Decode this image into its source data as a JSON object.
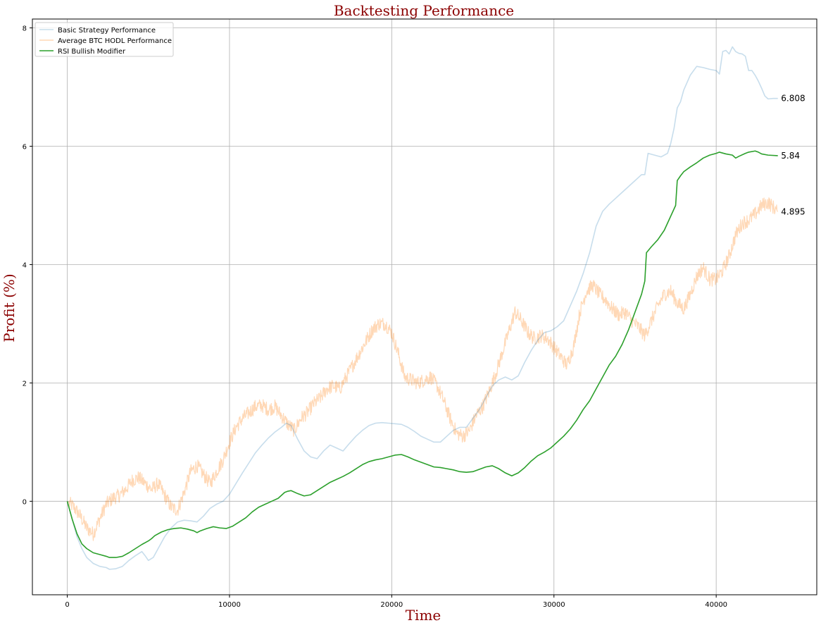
{
  "chart_data": {
    "type": "line",
    "title": "Backtesting Performance",
    "xlabel": "Time",
    "ylabel": "Profit (%)",
    "xlim": [
      -2150,
      46200
    ],
    "ylim": [
      -1.58,
      8.15
    ],
    "x_ticks": [
      0,
      10000,
      20000,
      30000,
      40000
    ],
    "y_ticks": [
      0,
      2,
      4,
      6,
      8
    ],
    "grid": true,
    "legend_position": "top-left",
    "series": [
      {
        "name": "Basic Strategy Performance",
        "color": "#1f77b4",
        "opacity": 0.25,
        "noise": 0,
        "end_label": "6.808",
        "x": [
          0,
          300,
          600,
          900,
          1200,
          1600,
          2000,
          2400,
          2600,
          3000,
          3400,
          3800,
          4200,
          4600,
          4800,
          5000,
          5300,
          5600,
          6000,
          6400,
          6800,
          7200,
          7600,
          8000,
          8400,
          8800,
          9200,
          9600,
          10000,
          10400,
          10800,
          11200,
          11600,
          12000,
          12400,
          12800,
          13200,
          13500,
          13800,
          14200,
          14600,
          15000,
          15400,
          15800,
          16200,
          16600,
          17000,
          17400,
          17800,
          18200,
          18600,
          19000,
          19400,
          19800,
          20200,
          20600,
          21000,
          21400,
          21800,
          22200,
          22600,
          23000,
          23400,
          23800,
          24200,
          24600,
          25000,
          25400,
          25800,
          26200,
          26600,
          27000,
          27400,
          27800,
          28200,
          28600,
          29000,
          29400,
          29800,
          30200,
          30600,
          31000,
          31400,
          31800,
          32200,
          32600,
          33000,
          33400,
          33800,
          34200,
          34600,
          35000,
          35400,
          35600,
          35800,
          36200,
          36600,
          37000,
          37200,
          37400,
          37600,
          37800,
          38000,
          38400,
          38800,
          39200,
          39600,
          40000,
          40200,
          40400,
          40600,
          40800,
          41000,
          41200,
          41400,
          41600,
          41800,
          42000,
          42200,
          42400,
          42600,
          42800,
          43000,
          43200,
          43500,
          43800
        ],
        "values": [
          0.0,
          -0.3,
          -0.6,
          -0.8,
          -0.95,
          -1.05,
          -1.1,
          -1.12,
          -1.15,
          -1.14,
          -1.1,
          -1.0,
          -0.92,
          -0.85,
          -0.92,
          -1.0,
          -0.95,
          -0.8,
          -0.6,
          -0.45,
          -0.35,
          -0.32,
          -0.33,
          -0.35,
          -0.25,
          -0.12,
          -0.05,
          0.0,
          0.12,
          0.3,
          0.48,
          0.65,
          0.82,
          0.95,
          1.07,
          1.17,
          1.25,
          1.32,
          1.28,
          1.05,
          0.85,
          0.75,
          0.72,
          0.85,
          0.95,
          0.9,
          0.85,
          0.98,
          1.1,
          1.2,
          1.28,
          1.32,
          1.33,
          1.32,
          1.31,
          1.3,
          1.25,
          1.18,
          1.1,
          1.05,
          1.0,
          1.0,
          1.1,
          1.2,
          1.25,
          1.25,
          1.4,
          1.55,
          1.75,
          1.95,
          2.05,
          2.1,
          2.05,
          2.12,
          2.35,
          2.55,
          2.72,
          2.85,
          2.88,
          2.95,
          3.05,
          3.3,
          3.55,
          3.85,
          4.2,
          4.65,
          4.9,
          5.02,
          5.12,
          5.22,
          5.32,
          5.42,
          5.52,
          5.52,
          5.88,
          5.85,
          5.82,
          5.88,
          6.05,
          6.3,
          6.65,
          6.75,
          6.95,
          7.2,
          7.35,
          7.33,
          7.3,
          7.28,
          7.22,
          7.6,
          7.62,
          7.56,
          7.68,
          7.6,
          7.57,
          7.56,
          7.52,
          7.28,
          7.28,
          7.2,
          7.1,
          6.98,
          6.85,
          6.8,
          6.808,
          6.808
        ]
      },
      {
        "name": "Average BTC HODL Performance",
        "color": "#ff7f0e",
        "opacity": 0.3,
        "noise": 0.12,
        "end_label": "4.895",
        "x": [
          0,
          400,
          800,
          1200,
          1600,
          2000,
          2400,
          2800,
          3200,
          3600,
          4000,
          4400,
          4800,
          5200,
          5600,
          6000,
          6400,
          6800,
          7200,
          7600,
          8000,
          8400,
          8800,
          9200,
          9600,
          10000,
          10400,
          10800,
          11200,
          11600,
          12000,
          12400,
          12800,
          13200,
          13600,
          14000,
          14400,
          14800,
          15200,
          15600,
          16000,
          16400,
          16800,
          17200,
          17600,
          18000,
          18400,
          18800,
          19200,
          19600,
          20000,
          20400,
          20800,
          21200,
          21600,
          22000,
          22400,
          22800,
          23200,
          23600,
          24000,
          24400,
          24800,
          25200,
          25600,
          26000,
          26400,
          26800,
          27200,
          27600,
          28000,
          28400,
          28800,
          29200,
          29600,
          30000,
          30400,
          30800,
          31200,
          31600,
          32000,
          32400,
          32800,
          33200,
          33600,
          34000,
          34400,
          34800,
          35200,
          35600,
          36000,
          36400,
          36800,
          37200,
          37600,
          38000,
          38400,
          38800,
          39200,
          39600,
          40000,
          40400,
          40800,
          41200,
          41600,
          42000,
          42400,
          42800,
          43200,
          43600,
          43800
        ],
        "values": [
          0.0,
          -0.1,
          -0.25,
          -0.45,
          -0.55,
          -0.3,
          -0.05,
          0.05,
          0.1,
          0.2,
          0.35,
          0.4,
          0.3,
          0.2,
          0.3,
          0.1,
          -0.1,
          -0.15,
          0.15,
          0.5,
          0.6,
          0.45,
          0.3,
          0.5,
          0.7,
          1.0,
          1.25,
          1.4,
          1.5,
          1.6,
          1.62,
          1.55,
          1.6,
          1.45,
          1.3,
          1.2,
          1.4,
          1.5,
          1.65,
          1.75,
          1.9,
          1.95,
          1.9,
          2.1,
          2.3,
          2.5,
          2.7,
          2.9,
          3.0,
          3.0,
          2.85,
          2.5,
          2.1,
          2.05,
          2.0,
          2.05,
          2.1,
          1.95,
          1.7,
          1.4,
          1.15,
          1.1,
          1.2,
          1.45,
          1.6,
          1.85,
          2.15,
          2.5,
          2.85,
          3.2,
          3.05,
          2.85,
          2.75,
          2.8,
          2.75,
          2.6,
          2.45,
          2.3,
          2.6,
          3.2,
          3.55,
          3.65,
          3.5,
          3.4,
          3.25,
          3.15,
          3.2,
          3.05,
          2.95,
          2.8,
          3.05,
          3.3,
          3.5,
          3.55,
          3.35,
          3.25,
          3.5,
          3.8,
          3.95,
          3.75,
          3.75,
          3.9,
          4.15,
          4.5,
          4.7,
          4.75,
          4.85,
          5.0,
          5.05,
          4.95,
          4.895
        ]
      },
      {
        "name": "RSI Bullish Modifier",
        "color": "#2ca02c",
        "opacity": 1,
        "noise": 0,
        "end_label": "5.84",
        "x": [
          0,
          300,
          600,
          900,
          1200,
          1600,
          2000,
          2400,
          2600,
          3000,
          3400,
          3800,
          4200,
          4600,
          5000,
          5200,
          5400,
          5800,
          6200,
          6600,
          7000,
          7400,
          7800,
          8000,
          8200,
          8600,
          9000,
          9400,
          9800,
          10200,
          10600,
          11000,
          11400,
          11800,
          12200,
          12600,
          13000,
          13400,
          13600,
          13800,
          14200,
          14600,
          15000,
          15400,
          15800,
          16200,
          16600,
          17000,
          17400,
          17800,
          18200,
          18600,
          19000,
          19400,
          19800,
          20200,
          20600,
          21000,
          21400,
          21800,
          22200,
          22600,
          23000,
          23400,
          23800,
          24200,
          24600,
          25000,
          25400,
          25800,
          26200,
          26600,
          27000,
          27400,
          27800,
          28200,
          28600,
          29000,
          29400,
          29800,
          30200,
          30600,
          31000,
          31400,
          31800,
          32200,
          32600,
          33000,
          33400,
          33800,
          34200,
          34600,
          35000,
          35400,
          35600,
          35700,
          36000,
          36400,
          36800,
          37200,
          37500,
          37600,
          37800,
          38000,
          38400,
          38800,
          39200,
          39600,
          40000,
          40200,
          40600,
          41000,
          41200,
          41400,
          41800,
          42000,
          42400,
          42600,
          42800,
          43200,
          43800
        ],
        "values": [
          0.0,
          -0.3,
          -0.55,
          -0.72,
          -0.8,
          -0.87,
          -0.9,
          -0.93,
          -0.95,
          -0.95,
          -0.93,
          -0.87,
          -0.8,
          -0.73,
          -0.67,
          -0.63,
          -0.58,
          -0.52,
          -0.48,
          -0.46,
          -0.45,
          -0.47,
          -0.5,
          -0.53,
          -0.5,
          -0.46,
          -0.43,
          -0.45,
          -0.46,
          -0.42,
          -0.35,
          -0.28,
          -0.18,
          -0.1,
          -0.05,
          0.0,
          0.05,
          0.15,
          0.17,
          0.18,
          0.13,
          0.09,
          0.11,
          0.18,
          0.25,
          0.32,
          0.37,
          0.42,
          0.48,
          0.55,
          0.62,
          0.67,
          0.7,
          0.72,
          0.75,
          0.78,
          0.79,
          0.75,
          0.7,
          0.66,
          0.62,
          0.58,
          0.57,
          0.55,
          0.53,
          0.5,
          0.49,
          0.5,
          0.54,
          0.58,
          0.6,
          0.55,
          0.48,
          0.43,
          0.48,
          0.57,
          0.68,
          0.77,
          0.83,
          0.9,
          1.0,
          1.1,
          1.22,
          1.37,
          1.55,
          1.7,
          1.9,
          2.1,
          2.3,
          2.45,
          2.65,
          2.9,
          3.2,
          3.5,
          3.72,
          4.2,
          4.3,
          4.42,
          4.58,
          4.82,
          5.0,
          5.42,
          5.5,
          5.57,
          5.65,
          5.72,
          5.8,
          5.85,
          5.88,
          5.9,
          5.87,
          5.85,
          5.8,
          5.83,
          5.88,
          5.9,
          5.92,
          5.9,
          5.87,
          5.85,
          5.84
        ]
      }
    ]
  },
  "colors": {
    "title": "#8b0000",
    "axis_label": "#8b0000",
    "grid": "#b0b0b0",
    "axes": "#000000"
  }
}
